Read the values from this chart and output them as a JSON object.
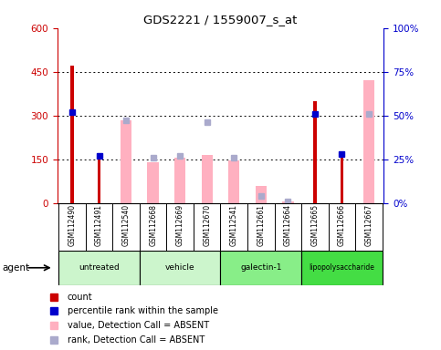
{
  "title": "GDS2221 / 1559007_s_at",
  "samples": [
    "GSM112490",
    "GSM112491",
    "GSM112540",
    "GSM112668",
    "GSM112669",
    "GSM112670",
    "GSM112541",
    "GSM112661",
    "GSM112664",
    "GSM112665",
    "GSM112666",
    "GSM112667"
  ],
  "group_spans": [
    {
      "label": "untreated",
      "start": 0,
      "end": 2,
      "color": "#ccf5cc"
    },
    {
      "label": "vehicle",
      "start": 3,
      "end": 5,
      "color": "#ccf5cc"
    },
    {
      "label": "galectin-1",
      "start": 6,
      "end": 8,
      "color": "#88ee88"
    },
    {
      "label": "lipopolysaccharide",
      "start": 9,
      "end": 11,
      "color": "#44dd44"
    }
  ],
  "red_bars": [
    470,
    160,
    null,
    null,
    null,
    null,
    null,
    null,
    null,
    350,
    158,
    null
  ],
  "blue_dots_pct": [
    52,
    27,
    null,
    null,
    null,
    null,
    null,
    null,
    null,
    51,
    28,
    null
  ],
  "pink_bars": [
    null,
    null,
    285,
    140,
    155,
    165,
    145,
    60,
    5,
    null,
    null,
    420
  ],
  "lavender_dots_pct": [
    null,
    null,
    47,
    26,
    27,
    46,
    26,
    4,
    1,
    null,
    null,
    51
  ],
  "ylim_left": [
    0,
    600
  ],
  "ylim_right": [
    0,
    100
  ],
  "yticks_left": [
    0,
    150,
    300,
    450,
    600
  ],
  "yticks_right": [
    0,
    25,
    50,
    75,
    100
  ],
  "yticklabels_left": [
    "0",
    "150",
    "300",
    "450",
    "600"
  ],
  "yticklabels_right": [
    "0%",
    "25%",
    "50%",
    "75%",
    "100%"
  ],
  "red_color": "#cc0000",
  "blue_color": "#0000cc",
  "pink_color": "#ffb0c0",
  "lavender_color": "#aaaacc",
  "left_axis_color": "#cc0000",
  "right_axis_color": "#0000cc",
  "bg_color": "#ffffff",
  "gray_box_color": "#cccccc",
  "agent_label": "agent"
}
